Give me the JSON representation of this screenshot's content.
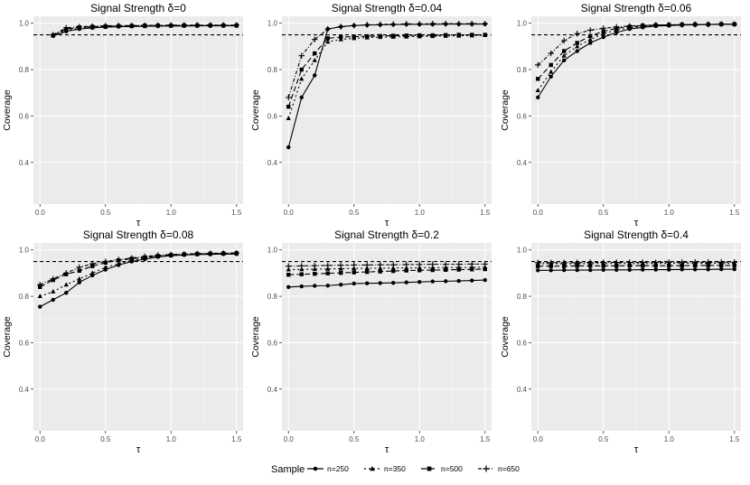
{
  "figure": {
    "legend_title": "Sample",
    "legend_placement": "bottom",
    "reference_line": 0.95
  },
  "shared_axes": {
    "xlabel": "τ",
    "ylabel": "Coverage",
    "xlim": [
      -0.05,
      1.55
    ],
    "ylim": [
      0.22,
      1.03
    ],
    "xticks": [
      0.0,
      0.5,
      1.0,
      1.5
    ],
    "xtick_labels": [
      "0.0",
      "0.5",
      "1.0",
      "1.5"
    ],
    "yticks": [
      0.4,
      0.6,
      0.8,
      1.0
    ],
    "ytick_labels": [
      "0.4",
      "0.6",
      "0.8",
      "1.0"
    ]
  },
  "series_styles": [
    {
      "name": "n=250",
      "marker": "circle",
      "dash": ""
    },
    {
      "name": "n=350",
      "marker": "triangle",
      "dash": "2,3"
    },
    {
      "name": "n=500",
      "marker": "square",
      "dash": "6,3"
    },
    {
      "name": "n=650",
      "marker": "plus",
      "dash": "4,2,1,2"
    }
  ],
  "chart_data": [
    {
      "type": "line",
      "title": "Signal Strength δ=0",
      "x": [
        0.1,
        0.2,
        0.3,
        0.4,
        0.5,
        0.6,
        0.7,
        0.8,
        0.9,
        1.0,
        1.1,
        1.2,
        1.3,
        1.4,
        1.5
      ],
      "series": [
        {
          "name": "n=250",
          "values": [
            0.945,
            0.965,
            0.975,
            0.98,
            0.983,
            0.985,
            0.986,
            0.987,
            0.988,
            0.988,
            0.988,
            0.989,
            0.989,
            0.989,
            0.989
          ]
        },
        {
          "name": "n=350",
          "values": [
            0.947,
            0.97,
            0.978,
            0.982,
            0.985,
            0.987,
            0.988,
            0.988,
            0.989,
            0.989,
            0.99,
            0.99,
            0.99,
            0.99,
            0.99
          ]
        },
        {
          "name": "n=500",
          "values": [
            0.948,
            0.975,
            0.982,
            0.985,
            0.987,
            0.988,
            0.989,
            0.99,
            0.99,
            0.99,
            0.991,
            0.991,
            0.991,
            0.991,
            0.991
          ]
        },
        {
          "name": "n=650",
          "values": [
            0.95,
            0.98,
            0.985,
            0.987,
            0.989,
            0.99,
            0.99,
            0.991,
            0.991,
            0.992,
            0.992,
            0.992,
            0.992,
            0.992,
            0.992
          ]
        }
      ]
    },
    {
      "type": "line",
      "title": "Signal Strength δ=0.04",
      "x": [
        0.0,
        0.1,
        0.2,
        0.3,
        0.4,
        0.5,
        0.6,
        0.7,
        0.8,
        0.9,
        1.0,
        1.1,
        1.2,
        1.3,
        1.4,
        1.5
      ],
      "series": [
        {
          "name": "n=250",
          "values": [
            0.465,
            0.68,
            0.775,
            0.975,
            0.985,
            0.99,
            0.992,
            0.993,
            0.994,
            0.995,
            0.995,
            0.995,
            0.996,
            0.996,
            0.996,
            0.996
          ]
        },
        {
          "name": "n=350",
          "values": [
            0.59,
            0.76,
            0.84,
            0.92,
            0.93,
            0.935,
            0.938,
            0.94,
            0.941,
            0.942,
            0.943,
            0.944,
            0.945,
            0.946,
            0.947,
            0.948
          ]
        },
        {
          "name": "n=500",
          "values": [
            0.64,
            0.8,
            0.87,
            0.935,
            0.94,
            0.942,
            0.944,
            0.945,
            0.946,
            0.947,
            0.948,
            0.948,
            0.949,
            0.95,
            0.95,
            0.95
          ]
        },
        {
          "name": "n=650",
          "values": [
            0.68,
            0.86,
            0.93,
            0.975,
            0.985,
            0.99,
            0.993,
            0.995,
            0.996,
            0.997,
            0.997,
            0.998,
            0.998,
            0.998,
            0.998,
            0.998
          ]
        }
      ]
    },
    {
      "type": "line",
      "title": "Signal Strength δ=0.06",
      "x": [
        0.0,
        0.1,
        0.2,
        0.3,
        0.4,
        0.5,
        0.6,
        0.7,
        0.8,
        0.9,
        1.0,
        1.1,
        1.2,
        1.3,
        1.4,
        1.5
      ],
      "series": [
        {
          "name": "n=250",
          "values": [
            0.68,
            0.77,
            0.84,
            0.88,
            0.915,
            0.94,
            0.96,
            0.975,
            0.982,
            0.988,
            0.99,
            0.992,
            0.993,
            0.994,
            0.995,
            0.995
          ]
        },
        {
          "name": "n=350",
          "values": [
            0.71,
            0.79,
            0.86,
            0.9,
            0.93,
            0.955,
            0.97,
            0.98,
            0.986,
            0.99,
            0.992,
            0.993,
            0.994,
            0.995,
            0.995,
            0.996
          ]
        },
        {
          "name": "n=500",
          "values": [
            0.76,
            0.82,
            0.88,
            0.915,
            0.945,
            0.965,
            0.978,
            0.985,
            0.99,
            0.992,
            0.993,
            0.994,
            0.995,
            0.995,
            0.996,
            0.996
          ]
        },
        {
          "name": "n=650",
          "values": [
            0.82,
            0.87,
            0.925,
            0.955,
            0.97,
            0.978,
            0.984,
            0.988,
            0.99,
            0.992,
            0.993,
            0.994,
            0.995,
            0.995,
            0.996,
            0.996
          ]
        }
      ]
    },
    {
      "type": "line",
      "title": "Signal Strength δ=0.08",
      "x": [
        0.0,
        0.1,
        0.2,
        0.3,
        0.4,
        0.5,
        0.6,
        0.7,
        0.8,
        0.9,
        1.0,
        1.1,
        1.2,
        1.3,
        1.4,
        1.5
      ],
      "series": [
        {
          "name": "n=250",
          "values": [
            0.755,
            0.785,
            0.815,
            0.86,
            0.89,
            0.915,
            0.935,
            0.95,
            0.96,
            0.97,
            0.975,
            0.978,
            0.98,
            0.981,
            0.982,
            0.982
          ]
        },
        {
          "name": "n=350",
          "values": [
            0.8,
            0.82,
            0.85,
            0.875,
            0.9,
            0.925,
            0.94,
            0.955,
            0.965,
            0.972,
            0.977,
            0.98,
            0.982,
            0.983,
            0.984,
            0.985
          ]
        },
        {
          "name": "n=500",
          "values": [
            0.84,
            0.87,
            0.895,
            0.91,
            0.93,
            0.945,
            0.955,
            0.962,
            0.968,
            0.974,
            0.978,
            0.981,
            0.983,
            0.984,
            0.985,
            0.986
          ]
        },
        {
          "name": "n=650",
          "values": [
            0.85,
            0.875,
            0.9,
            0.925,
            0.94,
            0.95,
            0.958,
            0.965,
            0.972,
            0.977,
            0.98,
            0.982,
            0.984,
            0.985,
            0.986,
            0.987
          ]
        }
      ]
    },
    {
      "type": "line",
      "title": "Signal Strength δ=0.2",
      "x": [
        0.0,
        0.1,
        0.2,
        0.3,
        0.4,
        0.5,
        0.6,
        0.7,
        0.8,
        0.9,
        1.0,
        1.1,
        1.2,
        1.3,
        1.4,
        1.5
      ],
      "series": [
        {
          "name": "n=250",
          "values": [
            0.84,
            0.843,
            0.845,
            0.846,
            0.85,
            0.855,
            0.856,
            0.857,
            0.858,
            0.86,
            0.862,
            0.864,
            0.865,
            0.866,
            0.868,
            0.87
          ]
        },
        {
          "name": "n=350",
          "values": [
            0.915,
            0.916,
            0.917,
            0.918,
            0.919,
            0.92,
            0.921,
            0.921,
            0.922,
            0.922,
            0.923,
            0.923,
            0.924,
            0.924,
            0.925,
            0.925
          ]
        },
        {
          "name": "n=500",
          "values": [
            0.893,
            0.895,
            0.897,
            0.899,
            0.901,
            0.903,
            0.905,
            0.907,
            0.909,
            0.911,
            0.912,
            0.913,
            0.914,
            0.915,
            0.916,
            0.917
          ]
        },
        {
          "name": "n=650",
          "values": [
            0.93,
            0.931,
            0.932,
            0.933,
            0.934,
            0.935,
            0.935,
            0.936,
            0.936,
            0.937,
            0.937,
            0.938,
            0.938,
            0.938,
            0.939,
            0.939
          ]
        }
      ]
    },
    {
      "type": "line",
      "title": "Signal Strength δ=0.4",
      "x": [
        0.0,
        0.1,
        0.2,
        0.3,
        0.4,
        0.5,
        0.6,
        0.7,
        0.8,
        0.9,
        1.0,
        1.1,
        1.2,
        1.3,
        1.4,
        1.5
      ],
      "series": [
        {
          "name": "n=250",
          "values": [
            0.912,
            0.912,
            0.913,
            0.913,
            0.913,
            0.914,
            0.914,
            0.914,
            0.915,
            0.915,
            0.915,
            0.916,
            0.916,
            0.916,
            0.917,
            0.917
          ]
        },
        {
          "name": "n=350",
          "values": [
            0.94,
            0.94,
            0.94,
            0.94,
            0.941,
            0.941,
            0.941,
            0.941,
            0.941,
            0.942,
            0.942,
            0.942,
            0.942,
            0.942,
            0.942,
            0.942
          ]
        },
        {
          "name": "n=500",
          "values": [
            0.93,
            0.93,
            0.93,
            0.931,
            0.931,
            0.931,
            0.931,
            0.932,
            0.932,
            0.932,
            0.932,
            0.932,
            0.933,
            0.933,
            0.933,
            0.933
          ]
        },
        {
          "name": "n=650",
          "values": [
            0.945,
            0.945,
            0.945,
            0.945,
            0.946,
            0.946,
            0.946,
            0.946,
            0.946,
            0.946,
            0.947,
            0.947,
            0.947,
            0.947,
            0.947,
            0.947
          ]
        }
      ]
    }
  ]
}
